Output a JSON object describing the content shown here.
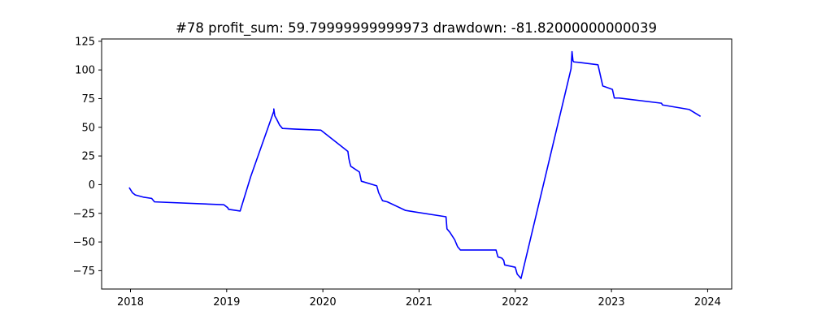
{
  "chart_data": {
    "type": "line",
    "title": "#78   profit_sum: 59.79999999999973 drawdown: -81.82000000000039",
    "xlabel": "",
    "ylabel": "",
    "x_axis": {
      "kind": "year",
      "lim": [
        2017.7,
        2024.25
      ],
      "ticks": [
        2018,
        2019,
        2020,
        2021,
        2022,
        2023,
        2024
      ],
      "tick_labels": [
        "2018",
        "2019",
        "2020",
        "2021",
        "2022",
        "2023",
        "2024"
      ]
    },
    "y_axis": {
      "lim": [
        -91,
        127
      ],
      "ticks": [
        -75,
        -50,
        -25,
        0,
        25,
        50,
        75,
        100,
        125
      ],
      "tick_labels": [
        "−75",
        "−50",
        "−25",
        "0",
        "25",
        "50",
        "75",
        "100",
        "125"
      ]
    },
    "grid": false,
    "legend": "none",
    "series": [
      {
        "color": "#0000ff",
        "x": [
          2017.99,
          2018.02,
          2018.05,
          2018.14,
          2018.22,
          2018.25,
          2018.97,
          2019.01,
          2019.02,
          2019.14,
          2019.25,
          2019.49,
          2019.49,
          2019.5,
          2019.52,
          2019.55,
          2019.58,
          2019.7,
          2019.98,
          2020.26,
          2020.27,
          2020.28,
          2020.29,
          2020.38,
          2020.39,
          2020.4,
          2020.56,
          2020.58,
          2020.62,
          2020.67,
          2020.86,
          2021.28,
          2021.29,
          2021.32,
          2021.37,
          2021.4,
          2021.43,
          2021.8,
          2021.82,
          2021.86,
          2021.88,
          2021.89,
          2022.0,
          2022.02,
          2022.06,
          2022.58,
          2022.59,
          2022.6,
          2022.61,
          2022.67,
          2022.86,
          2022.91,
          2023.01,
          2023.03,
          2023.08,
          2023.52,
          2023.53,
          2023.81,
          2023.92
        ],
        "y": [
          -3,
          -7,
          -9,
          -11,
          -12,
          -15,
          -17.5,
          -20,
          -21.5,
          -23,
          7,
          64,
          66,
          60,
          57,
          52,
          49,
          48.5,
          47.5,
          29,
          23,
          19,
          16,
          11,
          7,
          3,
          -1,
          -7,
          -14,
          -15,
          -22.5,
          -28,
          -38.5,
          -41.5,
          -48,
          -54,
          -57,
          -57,
          -63,
          -64,
          -66,
          -70,
          -72,
          -78,
          -81.8,
          101,
          116,
          108,
          107,
          106.5,
          104.5,
          86,
          83,
          75.5,
          75.5,
          71,
          69.5,
          65.5,
          59.8
        ]
      }
    ]
  }
}
